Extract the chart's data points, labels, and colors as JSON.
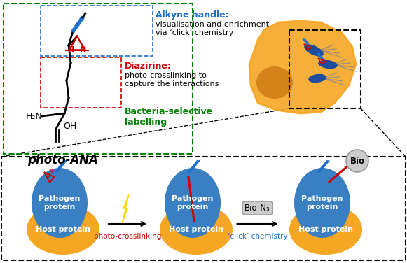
{
  "bg_color": "#ffffff",
  "alkyne_label": "Alkyne handle:",
  "alkyne_desc": "visualisation and enrichment\nvia ‘click’ chemistry",
  "alkyne_color": "#1e6fcc",
  "diazirine_label": "Diazirine:",
  "diazirine_desc": "photo-crosslinking to\ncapture the interactions",
  "diazirine_color": "#cc0000",
  "bacteria_label": "Bacteria-selective\nlabelling",
  "bacteria_color": "#008000",
  "photo_ana_label": "photo-ANA",
  "pathogen_color": "#3a7fc1",
  "host_color": "#f5a623",
  "pathogen_text": "Pathogen\nprotein",
  "host_text": "Host protein",
  "arrow1_label": "photo-crosslinking",
  "arrow2_label": "‘click’ chemistry",
  "bio_label": "Bio",
  "bio_n3_label": "Bio-N₃",
  "red_label_color": "#cc0000",
  "orange_cell_color": "#f5a623",
  "orange_dark_color": "#d4821a",
  "blue_bacteria_color": "#1e4d9e",
  "gray_color": "#aaaaaa",
  "bolt_color": "#FFD700"
}
